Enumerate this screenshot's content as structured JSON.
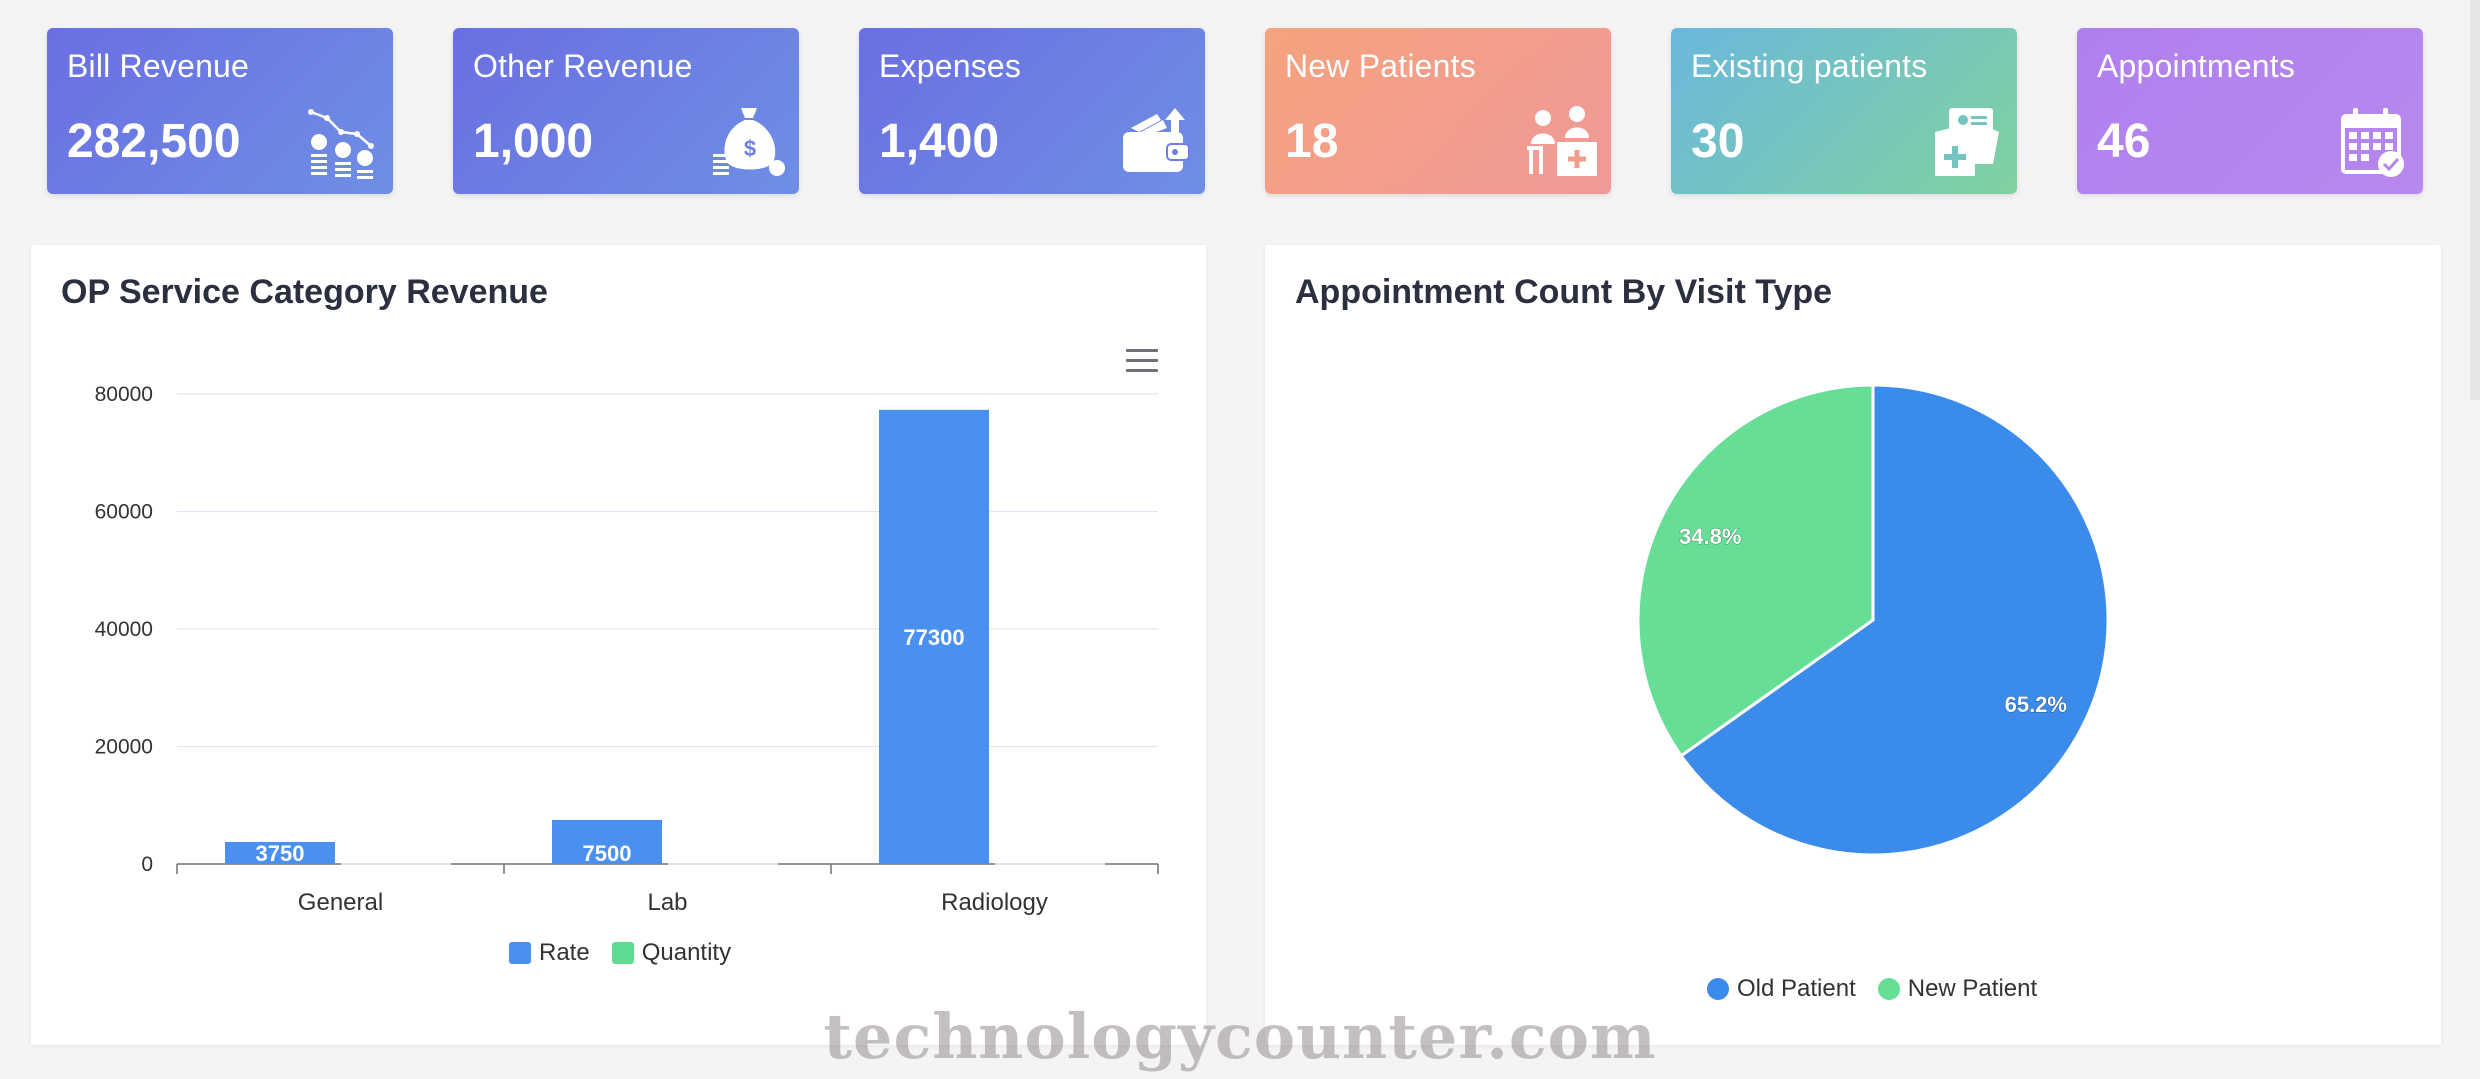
{
  "cards": [
    {
      "label": "Bill Revenue",
      "value": "282,500",
      "icon": "revenue-coins-icon"
    },
    {
      "label": "Other Revenue",
      "value": "1,000",
      "icon": "money-bag-icon"
    },
    {
      "label": "Expenses",
      "value": "1,400",
      "icon": "wallet-icon"
    },
    {
      "label": "New Patients",
      "value": "18",
      "icon": "doctor-patient-icon"
    },
    {
      "label": "Existing patients",
      "value": "30",
      "icon": "medical-record-icon"
    },
    {
      "label": "Appointments",
      "value": "46",
      "icon": "calendar-check-icon"
    }
  ],
  "colors": {
    "rate": "#4a90ef",
    "quantity": "#5fdc94",
    "old_patient": "#3b8beb",
    "new_patient": "#66de96"
  },
  "bar_panel": {
    "title": "OP Service Category Revenue"
  },
  "pie_panel": {
    "title": "Appointment Count By Visit Type"
  },
  "watermark": "technologycounter.com",
  "chart_data": [
    {
      "type": "bar",
      "title": "OP Service Category Revenue",
      "categories": [
        "General",
        "Lab",
        "Radiology"
      ],
      "series": [
        {
          "name": "Rate",
          "values": [
            3750,
            7500,
            77300
          ]
        },
        {
          "name": "Quantity",
          "values": [
            0,
            0,
            0
          ]
        }
      ],
      "yticks": [
        "0",
        "20000",
        "40000",
        "60000",
        "80000"
      ],
      "ylim": [
        0,
        80000
      ],
      "data_labels": [
        "3750",
        "7500",
        "77300"
      ],
      "grid": true,
      "legend": "bottom"
    },
    {
      "type": "pie",
      "title": "Appointment Count By Visit Type",
      "labels": [
        "Old Patient",
        "New Patient"
      ],
      "values": [
        65.2,
        34.8
      ],
      "data_labels": [
        "65.2%",
        "34.8%"
      ],
      "legend": "bottom"
    }
  ]
}
